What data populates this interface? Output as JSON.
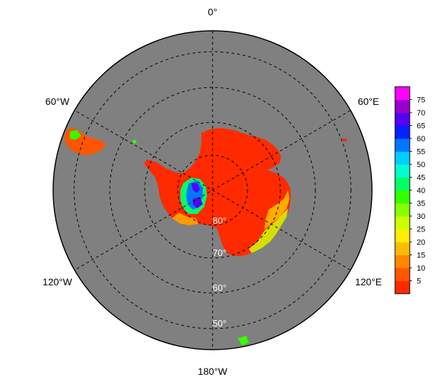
{
  "map": {
    "projection": "south-polar-stereographic",
    "background_color": "#808080",
    "longitude_labels": [
      {
        "key": "0",
        "text": "0°"
      },
      {
        "key": "60E",
        "text": "60°E"
      },
      {
        "key": "120E",
        "text": "120°E"
      },
      {
        "key": "180",
        "text": "180°W"
      },
      {
        "key": "120W",
        "text": "120°W"
      },
      {
        "key": "60W",
        "text": "60°W"
      }
    ],
    "latitude_labels": [
      {
        "key": "80",
        "text": "80°"
      },
      {
        "key": "70",
        "text": "70°"
      },
      {
        "key": "60",
        "text": "60°"
      },
      {
        "key": "50",
        "text": "50°"
      }
    ]
  },
  "colorbar": {
    "ticks": [
      "5",
      "10",
      "15",
      "20",
      "25",
      "30",
      "35",
      "40",
      "45",
      "50",
      "55",
      "60",
      "65",
      "70",
      "75"
    ],
    "colors": [
      "#ff2a00",
      "#ff5500",
      "#ff8800",
      "#ffbb00",
      "#ffee00",
      "#ccff00",
      "#88ff00",
      "#33ff00",
      "#00ff66",
      "#00ffcc",
      "#00ccff",
      "#0077ff",
      "#0022ff",
      "#5500ee",
      "#9900cc",
      "#ff00ff"
    ]
  }
}
